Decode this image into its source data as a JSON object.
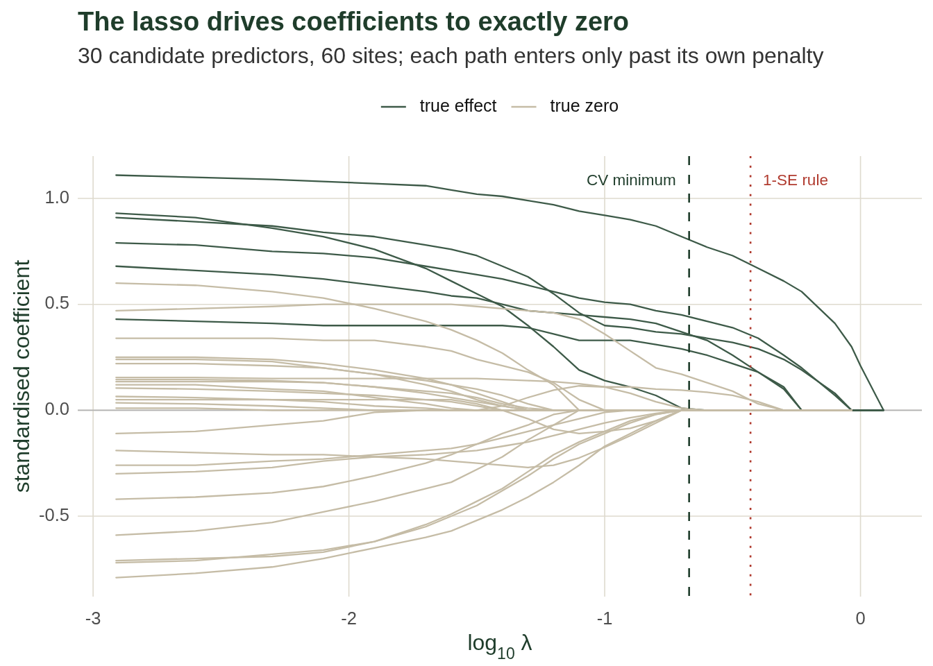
{
  "chart_data": {
    "type": "line",
    "title": "The lasso drives coefficients to exactly zero",
    "subtitle": "30 candidate predictors, 60 sites; each path enters only past its own penalty",
    "xlabel": "log$_{10}$ λ",
    "ylabel": "standardised coefficient",
    "x": [
      -2.91,
      -2.6,
      -2.3,
      -2.1,
      -1.9,
      -1.7,
      -1.6,
      -1.5,
      -1.4,
      -1.3,
      -1.2,
      -1.1,
      -1.0,
      -0.9,
      -0.8,
      -0.7,
      -0.6,
      -0.5,
      -0.4,
      -0.3,
      -0.23,
      -0.1,
      -0.035,
      0,
      0.09
    ],
    "xlim": [
      -3.06,
      0.24
    ],
    "ylim": [
      -0.88,
      1.2
    ],
    "xticks": [
      -3,
      -2,
      -1,
      0
    ],
    "yticks": [
      -0.5,
      {
        "value": 0,
        "label": "0.0"
      },
      0.5,
      {
        "value": 1,
        "label": "1.0"
      }
    ],
    "grid": true,
    "legend": "top",
    "ref_lines": [
      {
        "axis": "y",
        "value": 0,
        "color": "#b3b3b3"
      },
      {
        "axis": "x",
        "value": -0.67,
        "label": "CV minimum",
        "color": "#1f3d2b",
        "line_style": "dashed"
      },
      {
        "axis": "x",
        "value": -0.43,
        "label": "1-SE rule",
        "color": "#b03a2e",
        "line_style": "dotted"
      }
    ],
    "series": [
      {
        "name": "true effect",
        "color": "#3d5a48",
        "values": [
          1.11,
          1.1,
          1.09,
          1.08,
          1.07,
          1.06,
          1.04,
          1.02,
          1.01,
          0.99,
          0.97,
          0.94,
          0.92,
          0.9,
          0.87,
          0.82,
          0.77,
          0.73,
          0.67,
          0.61,
          0.56,
          0.41,
          0.3,
          0.21,
          0
        ]
      },
      {
        "color": "#3d5a48",
        "values": [
          0.93,
          0.91,
          0.86,
          0.82,
          0.76,
          0.67,
          0.61,
          0.55,
          0.49,
          0.4,
          0.3,
          0.19,
          0.14,
          0.11,
          0.07,
          0.01,
          0,
          0,
          0,
          0,
          0,
          0,
          0,
          0,
          0
        ]
      },
      {
        "color": "#3d5a48",
        "values": [
          0.91,
          0.89,
          0.87,
          0.84,
          0.82,
          0.78,
          0.76,
          0.73,
          0.68,
          0.63,
          0.55,
          0.46,
          0.4,
          0.39,
          0.37,
          0.36,
          0.34,
          0.32,
          0.29,
          0.24,
          0.19,
          0.08,
          0,
          0,
          0
        ]
      },
      {
        "color": "#3d5a48",
        "values": [
          0.79,
          0.78,
          0.75,
          0.74,
          0.72,
          0.68,
          0.66,
          0.64,
          0.62,
          0.59,
          0.56,
          0.53,
          0.51,
          0.5,
          0.47,
          0.45,
          0.42,
          0.39,
          0.34,
          0.26,
          0.2,
          0.07,
          0,
          0,
          0
        ]
      },
      {
        "color": "#3d5a48",
        "values": [
          0.68,
          0.66,
          0.64,
          0.62,
          0.59,
          0.56,
          0.54,
          0.53,
          0.5,
          0.47,
          0.46,
          0.45,
          0.44,
          0.43,
          0.41,
          0.37,
          0.33,
          0.26,
          0.18,
          0.1,
          0,
          0,
          0,
          0,
          0
        ]
      },
      {
        "color": "#3d5a48",
        "values": [
          0.43,
          0.42,
          0.41,
          0.4,
          0.4,
          0.4,
          0.4,
          0.4,
          0.4,
          0.39,
          0.36,
          0.33,
          0.33,
          0.33,
          0.31,
          0.29,
          0.26,
          0.22,
          0.18,
          0.11,
          0,
          0,
          0,
          0,
          0
        ]
      },
      {
        "name": "true zero",
        "color": "#c5bca6",
        "x": [
          -2.91,
          -2.6,
          -2.3,
          -2.1,
          -1.9,
          -1.7,
          -1.6,
          -1.5,
          -1.4,
          -1.3,
          -1.2,
          -1.1,
          -1.0,
          -0.9,
          -0.8,
          -0.7,
          -0.6,
          -0.5,
          -0.4,
          -0.3,
          -0.23,
          -0.1,
          -0.035
        ],
        "values": [
          0.6,
          0.59,
          0.56,
          0.53,
          0.48,
          0.42,
          0.38,
          0.33,
          0.27,
          0.19,
          0.12,
          0,
          0,
          0,
          0,
          0,
          0,
          0,
          0,
          0,
          0,
          0,
          0
        ]
      },
      {
        "color": "#c5bca6",
        "x": [
          -2.91,
          -2.6,
          -2.3,
          -2.1,
          -1.9,
          -1.7,
          -1.6,
          -1.5,
          -1.4,
          -1.3,
          -1.2,
          -1.1,
          -1.0,
          -0.9,
          -0.8,
          -0.7,
          -0.6,
          -0.5,
          -0.4,
          -0.3,
          -0.23,
          -0.1,
          -0.035
        ],
        "values": [
          0.47,
          0.48,
          0.49,
          0.5,
          0.5,
          0.5,
          0.5,
          0.49,
          0.48,
          0.47,
          0.46,
          0.43,
          0.36,
          0.28,
          0.2,
          0.17,
          0.13,
          0.09,
          0.03,
          0,
          0,
          0,
          0
        ]
      },
      {
        "color": "#c5bca6",
        "x": [
          -2.91,
          -2.6,
          -2.3,
          -2.1,
          -1.9,
          -1.7,
          -1.6,
          -1.5,
          -1.4,
          -1.3,
          -1.2,
          -1.1,
          -1.0,
          -0.9,
          -0.8,
          -0.7,
          -0.6,
          -0.5,
          -0.4,
          -0.3,
          -0.23,
          -0.1,
          -0.035
        ],
        "values": [
          0.34,
          0.34,
          0.34,
          0.33,
          0.33,
          0.3,
          0.28,
          0.24,
          0.21,
          0.18,
          0.13,
          0.05,
          0,
          0,
          0,
          0,
          0,
          0,
          0,
          0,
          0,
          0,
          0
        ]
      },
      {
        "color": "#c5bca6",
        "x": [
          -2.91,
          -2.6,
          -2.3,
          -2.1,
          -1.9,
          -1.7,
          -1.6,
          -1.5,
          -1.4,
          -1.3,
          -1.2,
          -1.1,
          -1.0,
          -0.9,
          -0.8,
          -0.7,
          -0.6,
          -0.5,
          -0.4,
          -0.3,
          -0.23,
          -0.1,
          -0.035
        ],
        "values": [
          0.25,
          0.25,
          0.24,
          0.22,
          0.19,
          0.15,
          0.12,
          0.08,
          0.04,
          0,
          0,
          0,
          0,
          0,
          0,
          0,
          0,
          0,
          0,
          0,
          0,
          0,
          0
        ]
      },
      {
        "color": "#c5bca6",
        "x": [
          -2.91,
          -2.6,
          -2.3,
          -2.1,
          -1.9,
          -1.7,
          -1.6,
          -1.5,
          -1.4,
          -1.3,
          -1.2,
          -1.1,
          -1.0,
          -0.9,
          -0.8,
          -0.7,
          -0.6,
          -0.5,
          -0.4,
          -0.3,
          -0.23,
          -0.1,
          -0.035
        ],
        "values": [
          0.24,
          0.24,
          0.23,
          0.2,
          0.17,
          0.12,
          0.09,
          0.05,
          0.02,
          0,
          0,
          0,
          0,
          0,
          0,
          0,
          0,
          0,
          0,
          0,
          0,
          0,
          0
        ]
      },
      {
        "color": "#c5bca6",
        "x": [
          -2.91,
          -2.6,
          -2.3,
          -2.1,
          -1.9,
          -1.7,
          -1.6,
          -1.5,
          -1.4,
          -1.3,
          -1.2,
          -1.1,
          -1.0,
          -0.9,
          -0.8,
          -0.7,
          -0.6,
          -0.5,
          -0.4,
          -0.3,
          -0.23,
          -0.1,
          -0.035
        ],
        "values": [
          0.22,
          0.22,
          0.21,
          0.2,
          0.17,
          0.14,
          0.12,
          0.1,
          0.07,
          0.03,
          0,
          0,
          0,
          0,
          0,
          0,
          0,
          0,
          0,
          0,
          0,
          0,
          0
        ]
      },
      {
        "color": "#c5bca6",
        "x": [
          -2.91,
          -2.6,
          -2.3,
          -2.1,
          -1.9,
          -1.7,
          -1.6,
          -1.5,
          -1.4,
          -1.3,
          -1.2,
          -1.1,
          -1.0,
          -0.9,
          -0.8,
          -0.7,
          -0.6,
          -0.5,
          -0.4,
          -0.3,
          -0.23,
          -0.1,
          -0.035
        ],
        "values": [
          0.155,
          0.155,
          0.15,
          0.15,
          0.15,
          0.15,
          0.15,
          0.15,
          0.145,
          0.14,
          0.135,
          0.125,
          0.11,
          0.11,
          0.1,
          0.095,
          0.085,
          0.07,
          0.04,
          0,
          0,
          0,
          0
        ]
      },
      {
        "color": "#c5bca6",
        "x": [
          -2.91,
          -2.6,
          -2.3,
          -2.1,
          -1.9,
          -1.7,
          -1.6,
          -1.5,
          -1.4,
          -1.3,
          -1.2,
          -1.1,
          -1.0,
          -0.9,
          -0.8,
          -0.7,
          -0.6,
          -0.5,
          -0.4,
          -0.3,
          -0.23,
          -0.1,
          -0.035
        ],
        "values": [
          0.145,
          0.145,
          0.14,
          0.13,
          0.11,
          0.08,
          0.06,
          0.04,
          0.02,
          0,
          0,
          0,
          0,
          0,
          0,
          0,
          0,
          0,
          0,
          0,
          0,
          0,
          0
        ]
      },
      {
        "color": "#c5bca6",
        "x": [
          -2.91,
          -2.6,
          -2.3,
          -2.1,
          -1.9,
          -1.7,
          -1.6,
          -1.5,
          -1.4,
          -1.3,
          -1.2,
          -1.1,
          -1.0,
          -0.9,
          -0.8,
          -0.7,
          -0.6,
          -0.5,
          -0.4,
          -0.3,
          -0.23,
          -0.1,
          -0.035
        ],
        "values": [
          0.135,
          0.135,
          0.135,
          0.13,
          0.11,
          0.09,
          0.08,
          0.06,
          0.03,
          0.01,
          0,
          0,
          0,
          0,
          0,
          0,
          0,
          0,
          0,
          0,
          0,
          0,
          0
        ]
      },
      {
        "color": "#c5bca6",
        "x": [
          -2.91,
          -2.6,
          -2.3,
          -2.1,
          -1.9,
          -1.7,
          -1.6,
          -1.5,
          -1.4,
          -1.3,
          -1.2,
          -1.1,
          -1.0,
          -0.9,
          -0.8,
          -0.7,
          -0.6,
          -0.5,
          -0.4,
          -0.3,
          -0.23,
          -0.1,
          -0.035
        ],
        "values": [
          0.12,
          0.12,
          0.1,
          0.09,
          0.06,
          0.03,
          0.01,
          0,
          0,
          0,
          0,
          0,
          0,
          0,
          0,
          0,
          0,
          0,
          0,
          0,
          0,
          0,
          0
        ]
      },
      {
        "color": "#c5bca6",
        "x": [
          -2.91,
          -2.6,
          -2.3,
          -2.1,
          -1.9,
          -1.7,
          -1.6,
          -1.5,
          -1.4,
          -1.3,
          -1.2,
          -1.1,
          -1.0,
          -0.9,
          -0.8,
          -0.7,
          -0.6,
          -0.5,
          -0.4,
          -0.3,
          -0.23,
          -0.1,
          -0.035
        ],
        "values": [
          0.105,
          0.1,
          0.09,
          0.08,
          0.07,
          0.05,
          0.04,
          0.02,
          0,
          0,
          0,
          0,
          0,
          0,
          0,
          0,
          0,
          0,
          0,
          0,
          0,
          0,
          0
        ]
      },
      {
        "color": "#c5bca6",
        "x": [
          -2.91,
          -2.6,
          -2.3,
          -2.1,
          -1.9,
          -1.7,
          -1.6,
          -1.5,
          -1.4,
          -1.3,
          -1.2,
          -1.1,
          -1.0,
          -0.9,
          -0.8,
          -0.7,
          -0.6,
          -0.5,
          -0.4,
          -0.3,
          -0.23,
          -0.1,
          -0.035
        ],
        "values": [
          0.065,
          0.06,
          0.05,
          0.04,
          0.02,
          0.01,
          0,
          0,
          0,
          0,
          0,
          0,
          0,
          0,
          0,
          0,
          0,
          0,
          0,
          0,
          0,
          0,
          0
        ]
      },
      {
        "color": "#c5bca6",
        "x": [
          -2.91,
          -2.6,
          -2.3,
          -2.1,
          -1.9,
          -1.7,
          -1.6,
          -1.5,
          -1.4,
          -1.3,
          -1.2,
          -1.1,
          -1.0,
          -0.9,
          -0.8,
          -0.7,
          -0.6,
          -0.5,
          -0.4,
          -0.3,
          -0.23,
          -0.1,
          -0.035
        ],
        "values": [
          0.05,
          0.05,
          0.05,
          0.05,
          0.05,
          0.05,
          0.05,
          0.03,
          0,
          -0.04,
          -0.09,
          -0.11,
          -0.1,
          -0.085,
          -0.05,
          0,
          0,
          0,
          0,
          0,
          0,
          0,
          0
        ]
      },
      {
        "color": "#c5bca6",
        "x": [
          -2.91,
          -2.6,
          -2.3,
          -2.1,
          -1.9,
          -1.7,
          -1.6,
          -1.5,
          -1.4,
          -1.3,
          -1.2,
          -1.1,
          -1.0,
          -0.9,
          -0.8,
          -0.7,
          -0.6,
          -0.5,
          -0.4,
          -0.3,
          -0.23,
          -0.1,
          -0.035
        ],
        "values": [
          0.035,
          0.03,
          0.02,
          0.01,
          0,
          0,
          0,
          0,
          0,
          0,
          0,
          0,
          0,
          0,
          0,
          0,
          0,
          0,
          0,
          0,
          0,
          0,
          0
        ]
      },
      {
        "color": "#c5bca6",
        "x": [
          -2.91,
          -2.6,
          -2.3,
          -2.1,
          -1.9,
          -1.7,
          -1.6,
          -1.5,
          -1.4,
          -1.3,
          -1.2,
          -1.1,
          -1.0,
          -0.9,
          -0.8,
          -0.7,
          -0.6,
          -0.5,
          -0.4,
          -0.3,
          -0.23,
          -0.1,
          -0.035
        ],
        "values": [
          0.01,
          0.01,
          0,
          0,
          0,
          0,
          0,
          0,
          0,
          0,
          0,
          0,
          0,
          0,
          0,
          0,
          0,
          0,
          0,
          0,
          0,
          0,
          0
        ]
      },
      {
        "color": "#c5bca6",
        "x": [
          -2.91,
          -2.6,
          -2.3,
          -2.1,
          -1.9,
          -1.7,
          -1.6,
          -1.5,
          -1.4,
          -1.3,
          -1.2,
          -1.1,
          -1.0,
          -0.9,
          -0.8,
          -0.7,
          -0.6,
          -0.5,
          -0.4,
          -0.3,
          -0.23,
          -0.1,
          -0.035
        ],
        "values": [
          -0.11,
          -0.1,
          -0.07,
          -0.05,
          -0.01,
          0,
          0,
          0,
          0.02,
          0.06,
          0.095,
          0.115,
          0.11,
          0.08,
          0.04,
          0.01,
          0,
          0,
          0,
          0,
          0,
          0,
          0
        ]
      },
      {
        "color": "#c5bca6",
        "x": [
          -2.91,
          -2.6,
          -2.3,
          -2.1,
          -1.9,
          -1.7,
          -1.6,
          -1.5,
          -1.4,
          -1.3,
          -1.2,
          -1.1,
          -1.0,
          -0.9,
          -0.8,
          -0.7,
          -0.6,
          -0.5,
          -0.4,
          -0.3,
          -0.23,
          -0.1,
          -0.035
        ],
        "values": [
          -0.19,
          -0.2,
          -0.21,
          -0.21,
          -0.22,
          -0.23,
          -0.24,
          -0.25,
          -0.26,
          -0.27,
          -0.26,
          -0.225,
          -0.175,
          -0.12,
          -0.06,
          0,
          0,
          0,
          0,
          0,
          0,
          0,
          0
        ]
      },
      {
        "color": "#c5bca6",
        "x": [
          -2.91,
          -2.6,
          -2.3,
          -2.1,
          -1.9,
          -1.7,
          -1.6,
          -1.5,
          -1.4,
          -1.3,
          -1.2,
          -1.1,
          -1.0,
          -0.9,
          -0.8,
          -0.7,
          -0.6,
          -0.5,
          -0.4,
          -0.3,
          -0.23,
          -0.1,
          -0.035
        ],
        "values": [
          -0.26,
          -0.26,
          -0.24,
          -0.23,
          -0.21,
          -0.19,
          -0.18,
          -0.16,
          -0.13,
          -0.1,
          -0.07,
          -0.04,
          -0.01,
          0,
          0,
          0,
          0,
          0,
          0,
          0,
          0,
          0,
          0
        ]
      },
      {
        "color": "#c5bca6",
        "x": [
          -2.91,
          -2.6,
          -2.3,
          -2.1,
          -1.9,
          -1.7,
          -1.6,
          -1.5,
          -1.4,
          -1.3,
          -1.2,
          -1.1,
          -1.0,
          -0.9,
          -0.8,
          -0.7,
          -0.6,
          -0.5,
          -0.4,
          -0.3,
          -0.23,
          -0.1,
          -0.035
        ],
        "values": [
          -0.3,
          -0.29,
          -0.27,
          -0.24,
          -0.22,
          -0.21,
          -0.2,
          -0.19,
          -0.17,
          -0.15,
          -0.12,
          -0.09,
          -0.06,
          -0.035,
          -0.015,
          0,
          0,
          0,
          0,
          0,
          0,
          0,
          0
        ]
      },
      {
        "color": "#c5bca6",
        "x": [
          -2.91,
          -2.6,
          -2.3,
          -2.1,
          -1.9,
          -1.7,
          -1.6,
          -1.5,
          -1.4,
          -1.3,
          -1.2,
          -1.1,
          -1.0,
          -0.9,
          -0.8,
          -0.7,
          -0.6,
          -0.5,
          -0.4,
          -0.3,
          -0.23,
          -0.1,
          -0.035
        ],
        "values": [
          -0.42,
          -0.41,
          -0.39,
          -0.36,
          -0.31,
          -0.25,
          -0.21,
          -0.16,
          -0.11,
          -0.07,
          -0.02,
          0,
          0,
          0,
          0,
          0,
          0,
          0,
          0,
          0,
          0,
          0,
          0
        ]
      },
      {
        "color": "#c5bca6",
        "x": [
          -2.91,
          -2.6,
          -2.3,
          -2.1,
          -1.9,
          -1.7,
          -1.6,
          -1.5,
          -1.4,
          -1.3,
          -1.2,
          -1.1,
          -1.0,
          -0.9,
          -0.8,
          -0.7,
          -0.6,
          -0.5,
          -0.4,
          -0.3,
          -0.23,
          -0.1,
          -0.035
        ],
        "values": [
          -0.59,
          -0.57,
          -0.53,
          -0.48,
          -0.43,
          -0.37,
          -0.34,
          -0.28,
          -0.22,
          -0.14,
          -0.07,
          0,
          0,
          0,
          0,
          0,
          0,
          0,
          0,
          0,
          0,
          0,
          0
        ]
      },
      {
        "color": "#c5bca6",
        "x": [
          -2.91,
          -2.6,
          -2.3,
          -2.1,
          -1.9,
          -1.7,
          -1.6,
          -1.5,
          -1.4,
          -1.3,
          -1.2,
          -1.1,
          -1.0,
          -0.9,
          -0.8,
          -0.7,
          -0.6,
          -0.5,
          -0.4,
          -0.3,
          -0.23,
          -0.1,
          -0.035
        ],
        "values": [
          -0.71,
          -0.7,
          -0.69,
          -0.67,
          -0.62,
          -0.54,
          -0.49,
          -0.43,
          -0.37,
          -0.29,
          -0.21,
          -0.15,
          -0.1,
          -0.05,
          -0.02,
          0,
          0,
          0,
          0,
          0,
          0,
          0,
          0
        ]
      },
      {
        "color": "#c5bca6",
        "x": [
          -2.91,
          -2.6,
          -2.3,
          -2.1,
          -1.9,
          -1.7,
          -1.6,
          -1.5,
          -1.4,
          -1.3,
          -1.2,
          -1.1,
          -1.0,
          -0.9,
          -0.8,
          -0.7,
          -0.6,
          -0.5,
          -0.4,
          -0.3,
          -0.23,
          -0.1,
          -0.035
        ],
        "values": [
          -0.72,
          -0.71,
          -0.68,
          -0.66,
          -0.62,
          -0.55,
          -0.5,
          -0.45,
          -0.38,
          -0.31,
          -0.23,
          -0.16,
          -0.11,
          -0.06,
          -0.02,
          0,
          0,
          0,
          0,
          0,
          0,
          0,
          0
        ]
      },
      {
        "color": "#c5bca6",
        "x": [
          -2.91,
          -2.6,
          -2.3,
          -2.1,
          -1.9,
          -1.7,
          -1.6,
          -1.5,
          -1.4,
          -1.3,
          -1.2,
          -1.1,
          -1.0,
          -0.9,
          -0.8,
          -0.7,
          -0.6,
          -0.5,
          -0.4,
          -0.3,
          -0.23,
          -0.1,
          -0.035
        ],
        "values": [
          -0.79,
          -0.77,
          -0.74,
          -0.7,
          -0.65,
          -0.6,
          -0.57,
          -0.52,
          -0.47,
          -0.41,
          -0.34,
          -0.26,
          -0.17,
          -0.11,
          -0.05,
          0,
          0,
          0,
          0,
          0,
          0,
          0,
          0
        ]
      }
    ]
  }
}
